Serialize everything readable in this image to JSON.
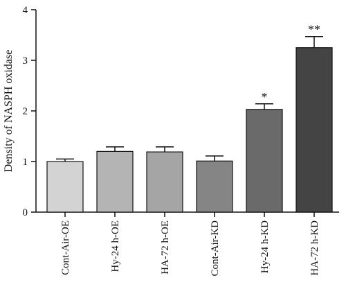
{
  "chart_data": {
    "type": "bar",
    "categories": [
      "Cont-Air-OE",
      "Hy-24 h-OE",
      "HA-72 h-OE",
      "Cont-Air-KD",
      "Hy-24 h-KD",
      "HA-72 h-KD"
    ],
    "values": [
      1.0,
      1.2,
      1.19,
      1.01,
      2.03,
      3.25
    ],
    "errors": [
      0.05,
      0.09,
      0.1,
      0.1,
      0.11,
      0.22
    ],
    "significance": [
      "",
      "",
      "",
      "",
      "*",
      "**"
    ],
    "bar_colors": [
      "#d3d3d3",
      "#b4b4b4",
      "#a5a5a5",
      "#858585",
      "#6a6a6a",
      "#444444"
    ],
    "title": "",
    "xlabel": "",
    "ylabel": "Density of NASPH oxidase",
    "ylim": [
      0,
      4
    ],
    "yticks": [
      0,
      1,
      2,
      3,
      4
    ],
    "grid": false,
    "legend": "none"
  }
}
